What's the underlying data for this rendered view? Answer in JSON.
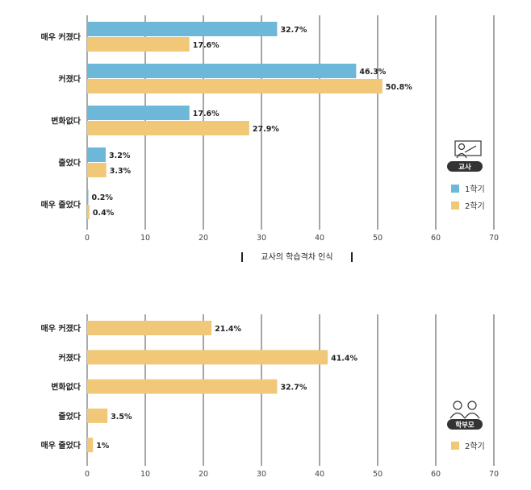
{
  "chart_data": [
    {
      "type": "bar",
      "orientation": "horizontal",
      "title": "교사의 학습격차 인식",
      "categories": [
        "매우 커졌다",
        "커졌다",
        "변화없다",
        "줄었다",
        "매우 줄었다"
      ],
      "series": [
        {
          "name": "1학기",
          "color": "#6db8d8",
          "values": [
            32.7,
            46.3,
            17.6,
            3.2,
            0.2
          ],
          "labels": [
            "32.7%",
            "46.3%",
            "17.6%",
            "3.2%",
            "0.2%"
          ]
        },
        {
          "name": "2학기",
          "color": "#f0c878",
          "values": [
            17.6,
            50.8,
            27.9,
            3.3,
            0.4
          ],
          "labels": [
            "17.6%",
            "50.8%",
            "27.9%",
            "3.3%",
            "0.4%"
          ]
        }
      ],
      "xlim": [
        0,
        70
      ],
      "xticks": [
        "0",
        "10",
        "20",
        "30",
        "40",
        "50",
        "60",
        "70"
      ],
      "grid": true,
      "legend": "right",
      "badge": {
        "label": "교사",
        "icon": "teacher-icon"
      }
    },
    {
      "type": "bar",
      "orientation": "horizontal",
      "title": "",
      "categories": [
        "매우 커졌다",
        "커졌다",
        "변화없다",
        "줄었다",
        "매우 줄었다"
      ],
      "series": [
        {
          "name": "2학기",
          "color": "#f0c878",
          "values": [
            21.4,
            41.4,
            32.7,
            3.5,
            1
          ],
          "labels": [
            "21.4%",
            "41.4%",
            "32.7%",
            "3.5%",
            "1%"
          ]
        }
      ],
      "xlim": [
        0,
        70
      ],
      "xticks": [
        "0",
        "10",
        "20",
        "30",
        "40",
        "50",
        "60",
        "70"
      ],
      "grid": true,
      "legend": "right",
      "badge": {
        "label": "학부모",
        "icon": "parents-icon"
      }
    }
  ]
}
